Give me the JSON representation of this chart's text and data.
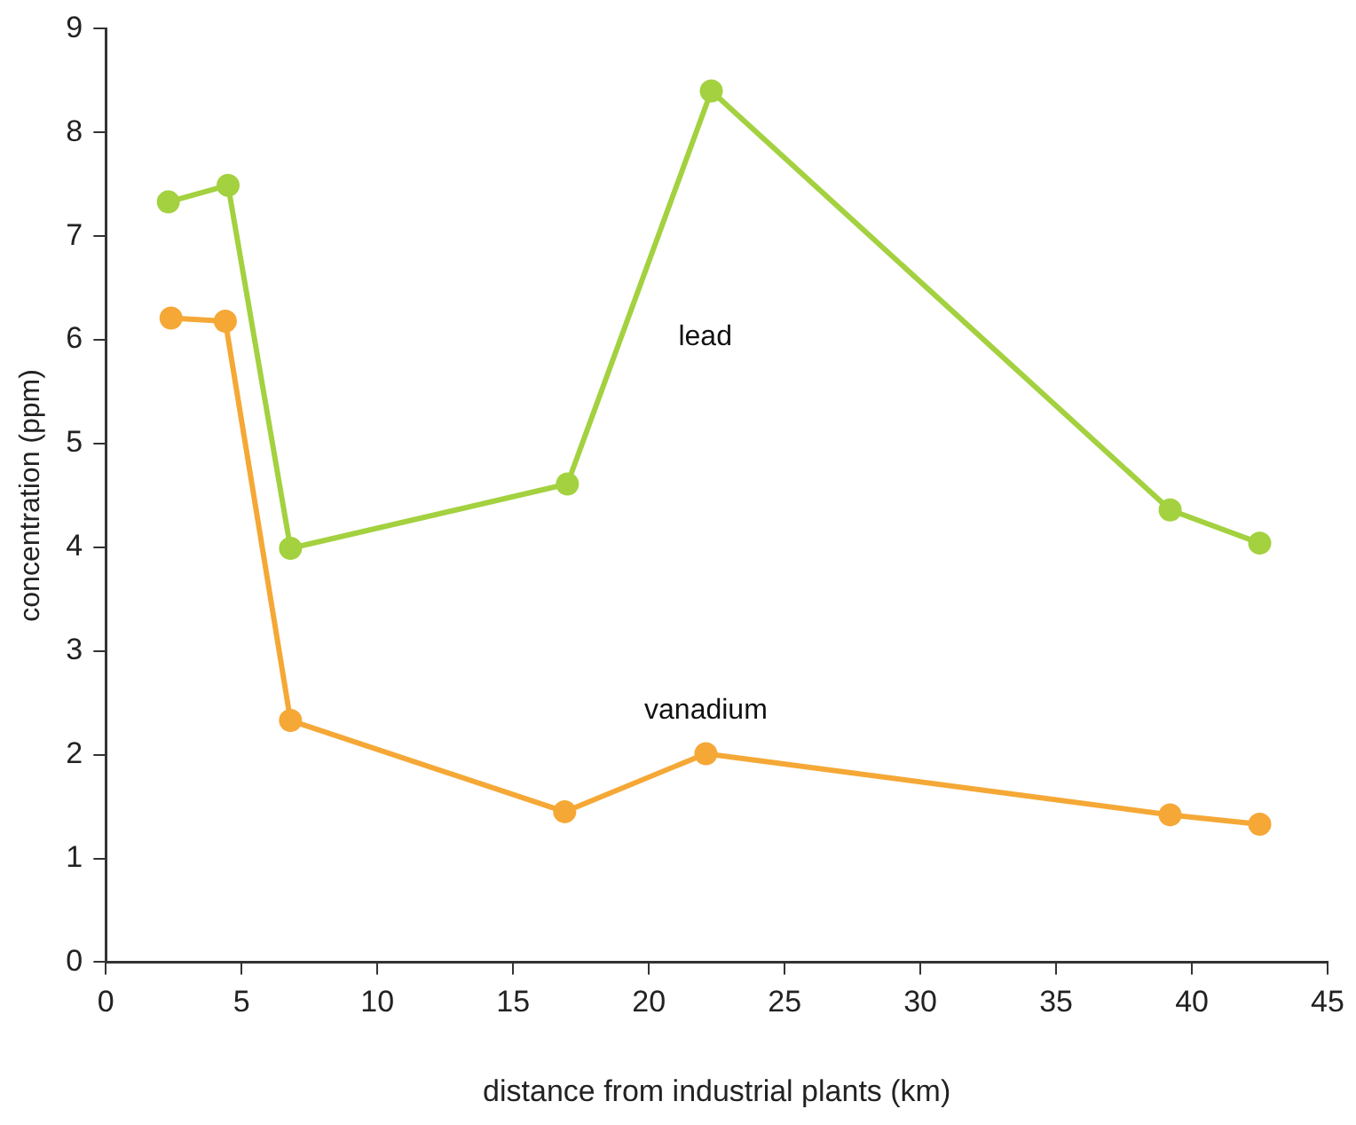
{
  "chart_data": {
    "type": "line",
    "xlabel": "distance from industrial plants (km)",
    "ylabel": "concentration (ppm)",
    "xlim": [
      0,
      45
    ],
    "xticks": [
      0,
      5,
      10,
      15,
      20,
      25,
      30,
      35,
      40,
      45
    ],
    "ylim": [
      0,
      9
    ],
    "yticks": [
      0,
      1,
      2,
      3,
      4,
      5,
      6,
      7,
      8,
      9
    ],
    "grid": false,
    "legend": false,
    "marker": "circle",
    "line_style": "solid",
    "series": [
      {
        "name": "lead",
        "color": "#a3d13f",
        "x": [
          2.3,
          4.5,
          6.8,
          17.0,
          22.3,
          39.2,
          42.5
        ],
        "values": [
          7.33,
          7.49,
          3.99,
          4.61,
          8.4,
          4.36,
          4.04
        ]
      },
      {
        "name": "vanadium",
        "color": "#f5a836",
        "x": [
          2.4,
          4.4,
          6.8,
          16.9,
          22.1,
          39.2,
          42.5
        ],
        "values": [
          6.21,
          6.18,
          2.33,
          1.45,
          2.01,
          1.42,
          1.33
        ]
      }
    ]
  }
}
